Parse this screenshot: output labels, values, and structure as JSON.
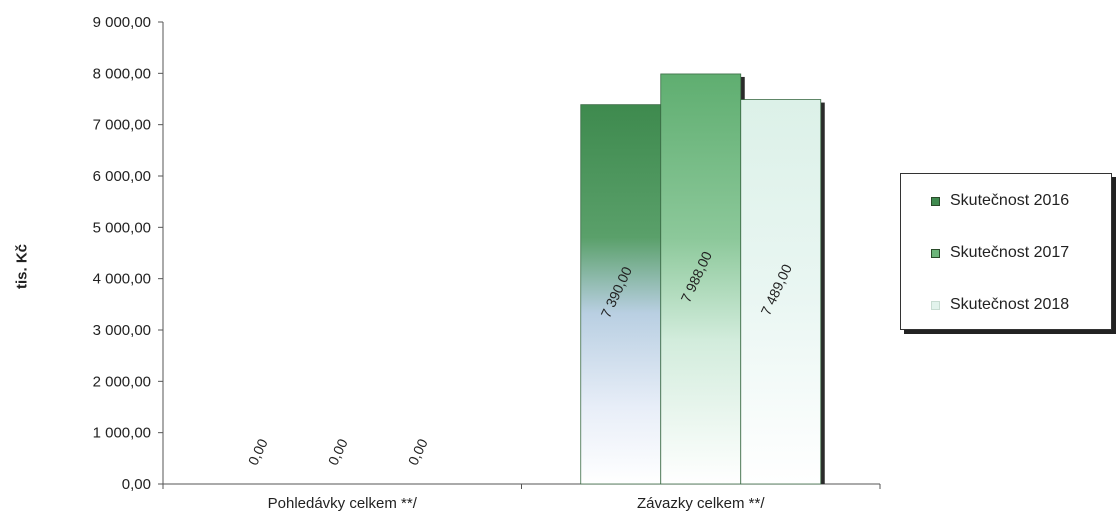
{
  "chart_data": {
    "type": "bar",
    "categories": [
      "Pohledávky celkem **/",
      "Závazky celkem **/"
    ],
    "series": [
      {
        "name": "Skutečnost 2016",
        "values": [
          0.0,
          7390.0
        ],
        "labels": [
          "0,00",
          "7 390,00"
        ],
        "color": "#3f8a4f"
      },
      {
        "name": "Skutečnost 2017",
        "values": [
          0.0,
          7988.0
        ],
        "labels": [
          "0,00",
          "7 988,00"
        ],
        "color": "#6cb57a"
      },
      {
        "name": "Skutečnost 2018",
        "values": [
          0.0,
          7489.0
        ],
        "labels": [
          "0,00",
          "7 489,00"
        ],
        "color": "#dff3ea"
      }
    ],
    "ylabel": "tis. Kč",
    "ylim": [
      0,
      9000
    ],
    "yticks": [
      0,
      1000,
      2000,
      3000,
      4000,
      5000,
      6000,
      7000,
      8000,
      9000
    ],
    "ytick_labels": [
      "0,00",
      "1 000,00",
      "2 000,00",
      "3 000,00",
      "4 000,00",
      "5 000,00",
      "6 000,00",
      "7 000,00",
      "8 000,00",
      "9 000,00"
    ],
    "grid": false,
    "legend_position": "right"
  }
}
